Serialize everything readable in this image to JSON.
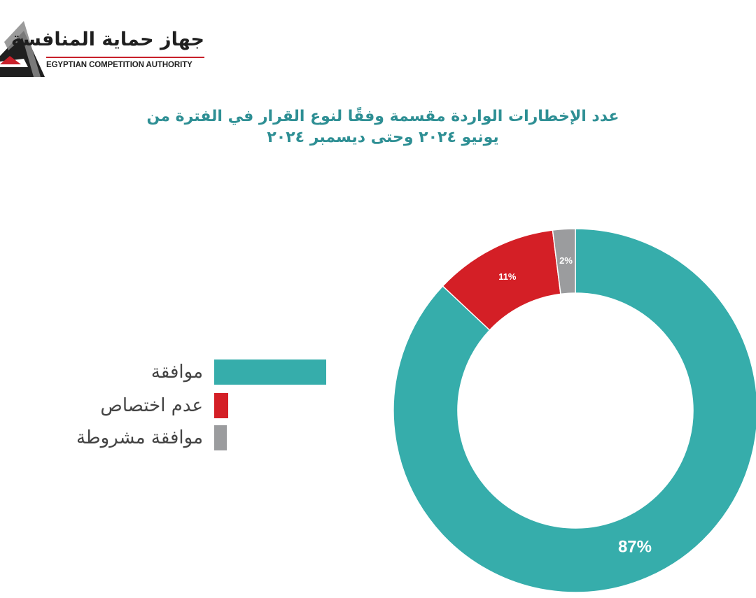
{
  "logo": {
    "arabic_name": "جهاز حماية المنافسة",
    "english_name": "EGYPTIAN COMPETITION AUTHORITY"
  },
  "chart_data": {
    "type": "pie",
    "style": "donut",
    "title_lines": [
      "عدد الإخطارات الواردة مقسمة وفقًا لنوع القرار في الفترة من",
      "يونيو ٢٠٢٤ وحتى ديسمبر ٢٠٢٤"
    ],
    "legend_placement": "left",
    "slices": [
      {
        "label": "موافقة",
        "value": 87,
        "value_label": "87%",
        "color": "#36adab"
      },
      {
        "label": "عدم اختصاص",
        "value": 11,
        "value_label": "11%",
        "color": "#d41f26"
      },
      {
        "label": "موافقة مشروطة",
        "value": 2,
        "value_label": "2%",
        "color": "#9b9c9e"
      }
    ]
  }
}
